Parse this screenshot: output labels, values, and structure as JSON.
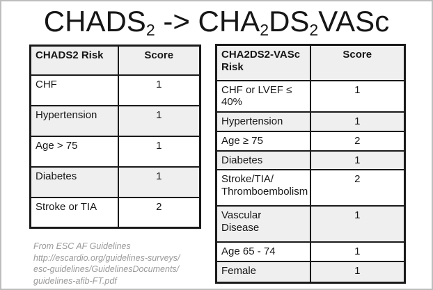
{
  "title": {
    "seg1": "CHADS",
    "sub1": "2",
    "arrow": " -> ",
    "seg2": "CHA",
    "sub2": "2",
    "seg3": "DS",
    "sub3": "2",
    "seg4": "VASc"
  },
  "left_table": {
    "header": {
      "risk": "CHADS2 Risk",
      "score": "Score"
    },
    "rows": [
      {
        "label": "CHF",
        "score": "1"
      },
      {
        "label": "Hypertension",
        "score": "1"
      },
      {
        "label": "Age > 75",
        "score": "1"
      },
      {
        "label": "Diabetes",
        "score": "1"
      },
      {
        "label": "Stroke or TIA",
        "score": "2"
      }
    ]
  },
  "right_table": {
    "header": {
      "risk": "CHA2DS2-VASc Risk",
      "score": "Score"
    },
    "rows": [
      {
        "label": "CHF or LVEF ≤\n40%",
        "score": "1"
      },
      {
        "label": "Hypertension",
        "score": "1"
      },
      {
        "label": "Age ≥ 75",
        "score": "2"
      },
      {
        "label": "Diabetes",
        "score": "1"
      },
      {
        "label": "Stroke/TIA/\nThromboembolism",
        "score": "2"
      },
      {
        "label": "Vascular\nDisease",
        "score": "1"
      },
      {
        "label": "Age 65 - 74",
        "score": "1"
      },
      {
        "label": "Female",
        "score": "1"
      }
    ]
  },
  "attribution": {
    "text": "From ESC AF Guidelines\nhttp://escardio.org/guidelines-surveys/\nesc-guidelines/GuidelinesDocuments/\nguidelines-afib-FT.pdf"
  },
  "colors": {
    "row_alt_bg": "#efefef",
    "table_border": "#1a1a1a",
    "outer_frame": "#bdbdbd",
    "attribution_text": "#9a9a9a"
  }
}
